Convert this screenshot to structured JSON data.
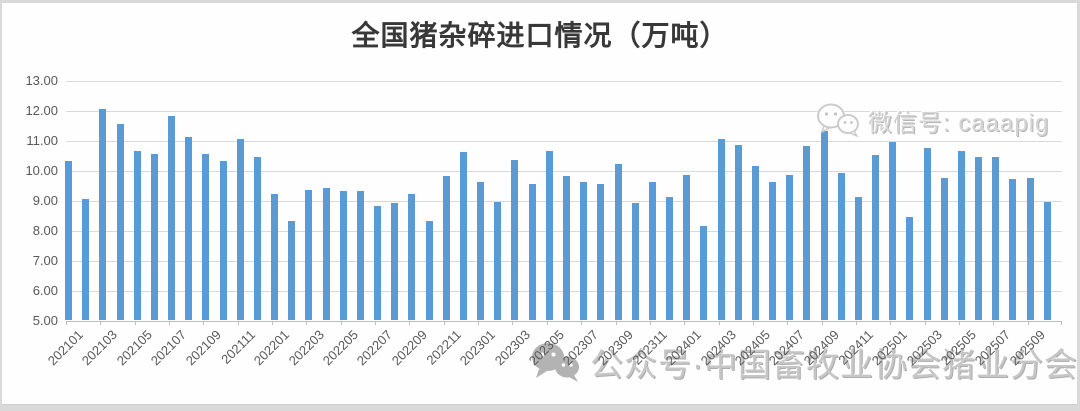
{
  "chart_data": {
    "type": "bar",
    "title": "全国猪杂碎进口情况（万吨）",
    "xlabel": "",
    "ylabel": "",
    "ylim": [
      5,
      13
    ],
    "grid": true,
    "legend": false,
    "bar_color": "#5b9bd5",
    "gridline_color": "#d9d9d9",
    "axis_text_color": "#595959",
    "ytick_labels": [
      "13.00",
      "12.00",
      "11.00",
      "10.00",
      "9.00",
      "8.00",
      "7.00",
      "6.00",
      "5.00"
    ],
    "xtick_shown_every": 2,
    "categories": [
      "202101",
      "202102",
      "202103",
      "202104",
      "202105",
      "202106",
      "202107",
      "202108",
      "202109",
      "202110",
      "202111",
      "202112",
      "202201",
      "202202",
      "202203",
      "202204",
      "202205",
      "202206",
      "202207",
      "202208",
      "202209",
      "202210",
      "202211",
      "202212",
      "202301",
      "202302",
      "202303",
      "202304",
      "202305",
      "202306",
      "202307",
      "202308",
      "202309",
      "202310",
      "202311",
      "202312",
      "202401",
      "202402",
      "202403",
      "202404",
      "202405",
      "202406",
      "202407",
      "202408",
      "202409",
      "202410",
      "202411",
      "202412",
      "202501",
      "202502",
      "202503",
      "202504",
      "202505",
      "202506",
      "202507",
      "202508",
      "202509",
      "202510"
    ],
    "values": [
      10.3,
      9.05,
      12.05,
      11.55,
      10.65,
      10.55,
      11.8,
      11.1,
      10.55,
      10.3,
      11.05,
      10.45,
      9.2,
      8.3,
      9.35,
      9.4,
      9.3,
      9.3,
      8.8,
      8.9,
      9.2,
      8.3,
      9.8,
      10.6,
      9.6,
      8.95,
      10.35,
      9.55,
      10.65,
      9.8,
      9.6,
      9.55,
      10.2,
      8.9,
      9.6,
      9.1,
      9.85,
      8.15,
      11.05,
      10.85,
      10.15,
      9.6,
      9.85,
      10.8,
      11.3,
      9.9,
      9.1,
      10.5,
      10.95,
      8.45,
      10.75,
      9.75,
      10.65,
      10.45,
      10.45,
      9.7,
      9.75,
      8.95
    ]
  },
  "watermarks": {
    "top_right": {
      "icon": "wechat-icon",
      "text": "微信号: caaapig"
    },
    "bottom": {
      "icon": "wechat-icon",
      "text": "公众号·中国畜牧业协会猪业分会"
    }
  }
}
